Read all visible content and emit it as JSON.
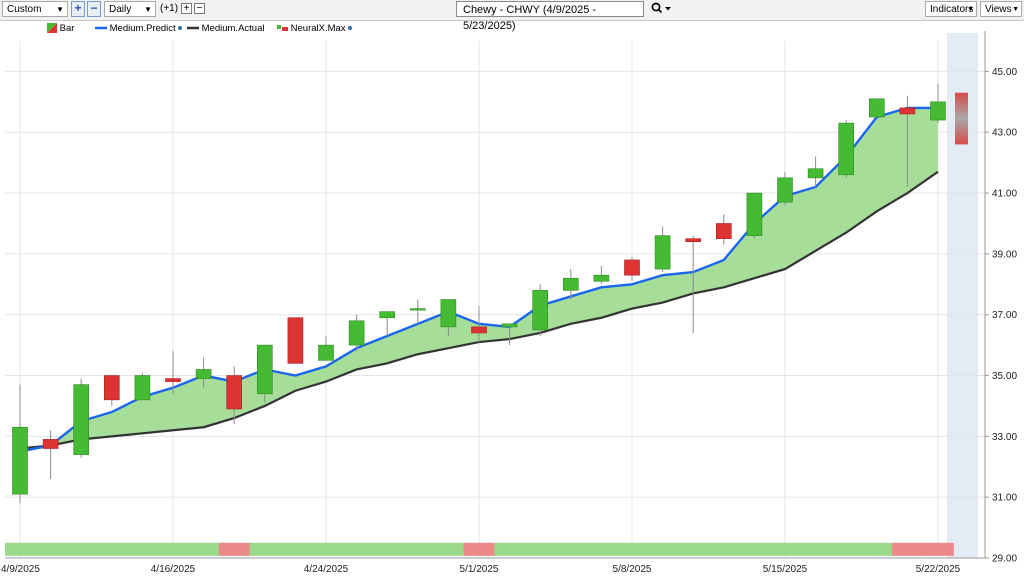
{
  "toolbar": {
    "mode_select": "Custom",
    "plus_icon": "+",
    "minus_icon": "−",
    "period_select": "Daily",
    "offset_label": "(+1)",
    "small_plus": "+",
    "small_minus": "−",
    "chart_title": "Chewy - CHWY (4/9/2025 - 5/23/2025)",
    "search_icon": "search-icon",
    "indicators_label": "Indicators",
    "views_label": "Views"
  },
  "legend": {
    "items": [
      "Bar",
      "Medium.Predict",
      "Medium.Actual",
      "NeuralX.Max"
    ]
  },
  "colors": {
    "up": "#44bb33",
    "down": "#dd3333",
    "predict": "#1a66ee",
    "actual": "#333333",
    "fill": "#a6dd99",
    "band_green": "#99d988",
    "band_red": "#ee8888",
    "future_bg": "#e3ebf5"
  },
  "chart_data": {
    "type": "candlestick",
    "title": "Chewy - CHWY (4/9/2025 - 5/23/2025)",
    "y_axis": {
      "min": 29.0,
      "max": 46.0,
      "ticks": [
        "29.00",
        "31.00",
        "33.00",
        "35.00",
        "37.00",
        "39.00",
        "41.00",
        "43.00",
        "45.00"
      ]
    },
    "x_ticks": [
      "4/9/2025",
      "4/16/2025",
      "4/24/2025",
      "5/1/2025",
      "5/8/2025",
      "5/15/2025",
      "5/22/2025"
    ],
    "bars": [
      {
        "o": 31.1,
        "h": 34.7,
        "l": 30.8,
        "c": 33.3
      },
      {
        "o": 32.9,
        "h": 33.2,
        "l": 31.6,
        "c": 32.6
      },
      {
        "o": 32.4,
        "h": 34.9,
        "l": 32.3,
        "c": 34.7
      },
      {
        "o": 35.0,
        "h": 35.0,
        "l": 34.0,
        "c": 34.2
      },
      {
        "o": 34.2,
        "h": 35.1,
        "l": 34.2,
        "c": 35.0
      },
      {
        "o": 34.9,
        "h": 35.8,
        "l": 34.4,
        "c": 34.8
      },
      {
        "o": 34.9,
        "h": 35.6,
        "l": 34.6,
        "c": 35.2
      },
      {
        "o": 35.0,
        "h": 35.3,
        "l": 33.4,
        "c": 33.9
      },
      {
        "o": 34.4,
        "h": 36.0,
        "l": 34.1,
        "c": 36.0
      },
      {
        "o": 36.9,
        "h": 36.9,
        "l": 35.4,
        "c": 35.4
      },
      {
        "o": 35.5,
        "h": 36.3,
        "l": 35.5,
        "c": 36.0
      },
      {
        "o": 36.0,
        "h": 37.0,
        "l": 35.8,
        "c": 36.8
      },
      {
        "o": 36.9,
        "h": 37.1,
        "l": 36.3,
        "c": 37.1
      },
      {
        "o": 37.2,
        "h": 37.5,
        "l": 36.7,
        "c": 37.2
      },
      {
        "o": 36.6,
        "h": 37.5,
        "l": 36.3,
        "c": 37.5
      },
      {
        "o": 36.6,
        "h": 37.3,
        "l": 36.1,
        "c": 36.4
      },
      {
        "o": 36.6,
        "h": 36.7,
        "l": 36.0,
        "c": 36.7
      },
      {
        "o": 36.5,
        "h": 38.0,
        "l": 36.3,
        "c": 37.8
      },
      {
        "o": 37.8,
        "h": 38.5,
        "l": 37.5,
        "c": 38.2
      },
      {
        "o": 38.1,
        "h": 38.6,
        "l": 38.0,
        "c": 38.3
      },
      {
        "o": 38.8,
        "h": 38.9,
        "l": 38.1,
        "c": 38.3
      },
      {
        "o": 38.5,
        "h": 39.9,
        "l": 38.4,
        "c": 39.6
      },
      {
        "o": 39.5,
        "h": 39.6,
        "l": 36.4,
        "c": 39.4
      },
      {
        "o": 40.0,
        "h": 40.3,
        "l": 39.3,
        "c": 39.5
      },
      {
        "o": 39.6,
        "h": 41.0,
        "l": 39.5,
        "c": 41.0
      },
      {
        "o": 40.7,
        "h": 41.7,
        "l": 40.6,
        "c": 41.5
      },
      {
        "o": 41.5,
        "h": 42.2,
        "l": 41.2,
        "c": 41.8
      },
      {
        "o": 41.6,
        "h": 43.4,
        "l": 41.5,
        "c": 43.3
      },
      {
        "o": 43.5,
        "h": 44.1,
        "l": 43.5,
        "c": 44.1
      },
      {
        "o": 43.8,
        "h": 44.2,
        "l": 41.2,
        "c": 43.6
      },
      {
        "o": 43.4,
        "h": 44.6,
        "l": 43.3,
        "c": 44.0
      }
    ],
    "medium_predict": [
      32.5,
      32.7,
      33.5,
      33.8,
      34.3,
      34.6,
      35.0,
      34.8,
      35.2,
      35.0,
      35.3,
      35.9,
      36.3,
      36.7,
      37.1,
      36.7,
      36.6,
      37.3,
      37.6,
      37.9,
      38.0,
      38.3,
      38.4,
      38.8,
      40.0,
      40.9,
      41.2,
      42.2,
      43.5,
      43.8,
      43.8
    ],
    "medium_actual": [
      32.6,
      32.7,
      32.9,
      33.0,
      33.1,
      33.2,
      33.3,
      33.6,
      34.0,
      34.5,
      34.8,
      35.2,
      35.4,
      35.7,
      35.9,
      36.1,
      36.2,
      36.4,
      36.7,
      36.9,
      37.2,
      37.4,
      37.7,
      37.9,
      38.2,
      38.5,
      39.1,
      39.7,
      40.4,
      41.0,
      41.7
    ],
    "neuralx_max": {
      "high": 44.3,
      "low": 42.6
    },
    "signal_band": [
      "g",
      "g",
      "g",
      "g",
      "g",
      "g",
      "g",
      "r",
      "g",
      "g",
      "g",
      "g",
      "g",
      "g",
      "g",
      "r",
      "g",
      "g",
      "g",
      "g",
      "g",
      "g",
      "g",
      "g",
      "g",
      "g",
      "g",
      "g",
      "g",
      "r",
      "r"
    ]
  }
}
